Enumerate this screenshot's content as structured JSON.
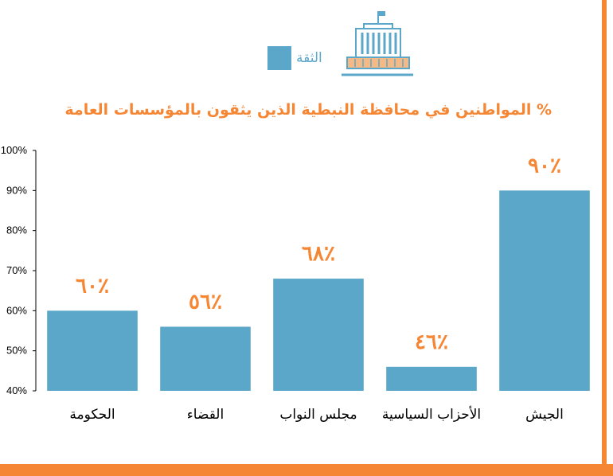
{
  "legend": {
    "label": "الثقة"
  },
  "colors": {
    "accent": "#f58634",
    "bar": "#5ba7c9",
    "icon_outline": "#5ba7c9",
    "icon_fill": "#f5b985"
  },
  "icons": {
    "title_icon": "government-building-icon"
  },
  "chart_data": {
    "type": "bar",
    "title": "% المواطنين في محافظة النبطية الذين يثقون بالمؤسسات العامة",
    "xlabel": "",
    "ylabel": "",
    "categories": [
      "الحكومة",
      "القضاء",
      "مجلس النواب",
      "الأحزاب السياسية",
      "الجيش"
    ],
    "series": [
      {
        "name": "الثقة",
        "values": [
          60,
          56,
          68,
          46,
          90
        ]
      }
    ],
    "data_labels": [
      "٦٠٪",
      "٥٦٪",
      "٦٨٪",
      "٤٦٪",
      "٩٠٪"
    ],
    "ylim": [
      40,
      100
    ],
    "yticks": [
      40,
      50,
      60,
      70,
      80,
      90,
      100
    ],
    "ytick_labels": [
      "40%",
      "50%",
      "60%",
      "70%",
      "80%",
      "90%",
      "100%"
    ],
    "grid": false,
    "legend_position": "top"
  }
}
